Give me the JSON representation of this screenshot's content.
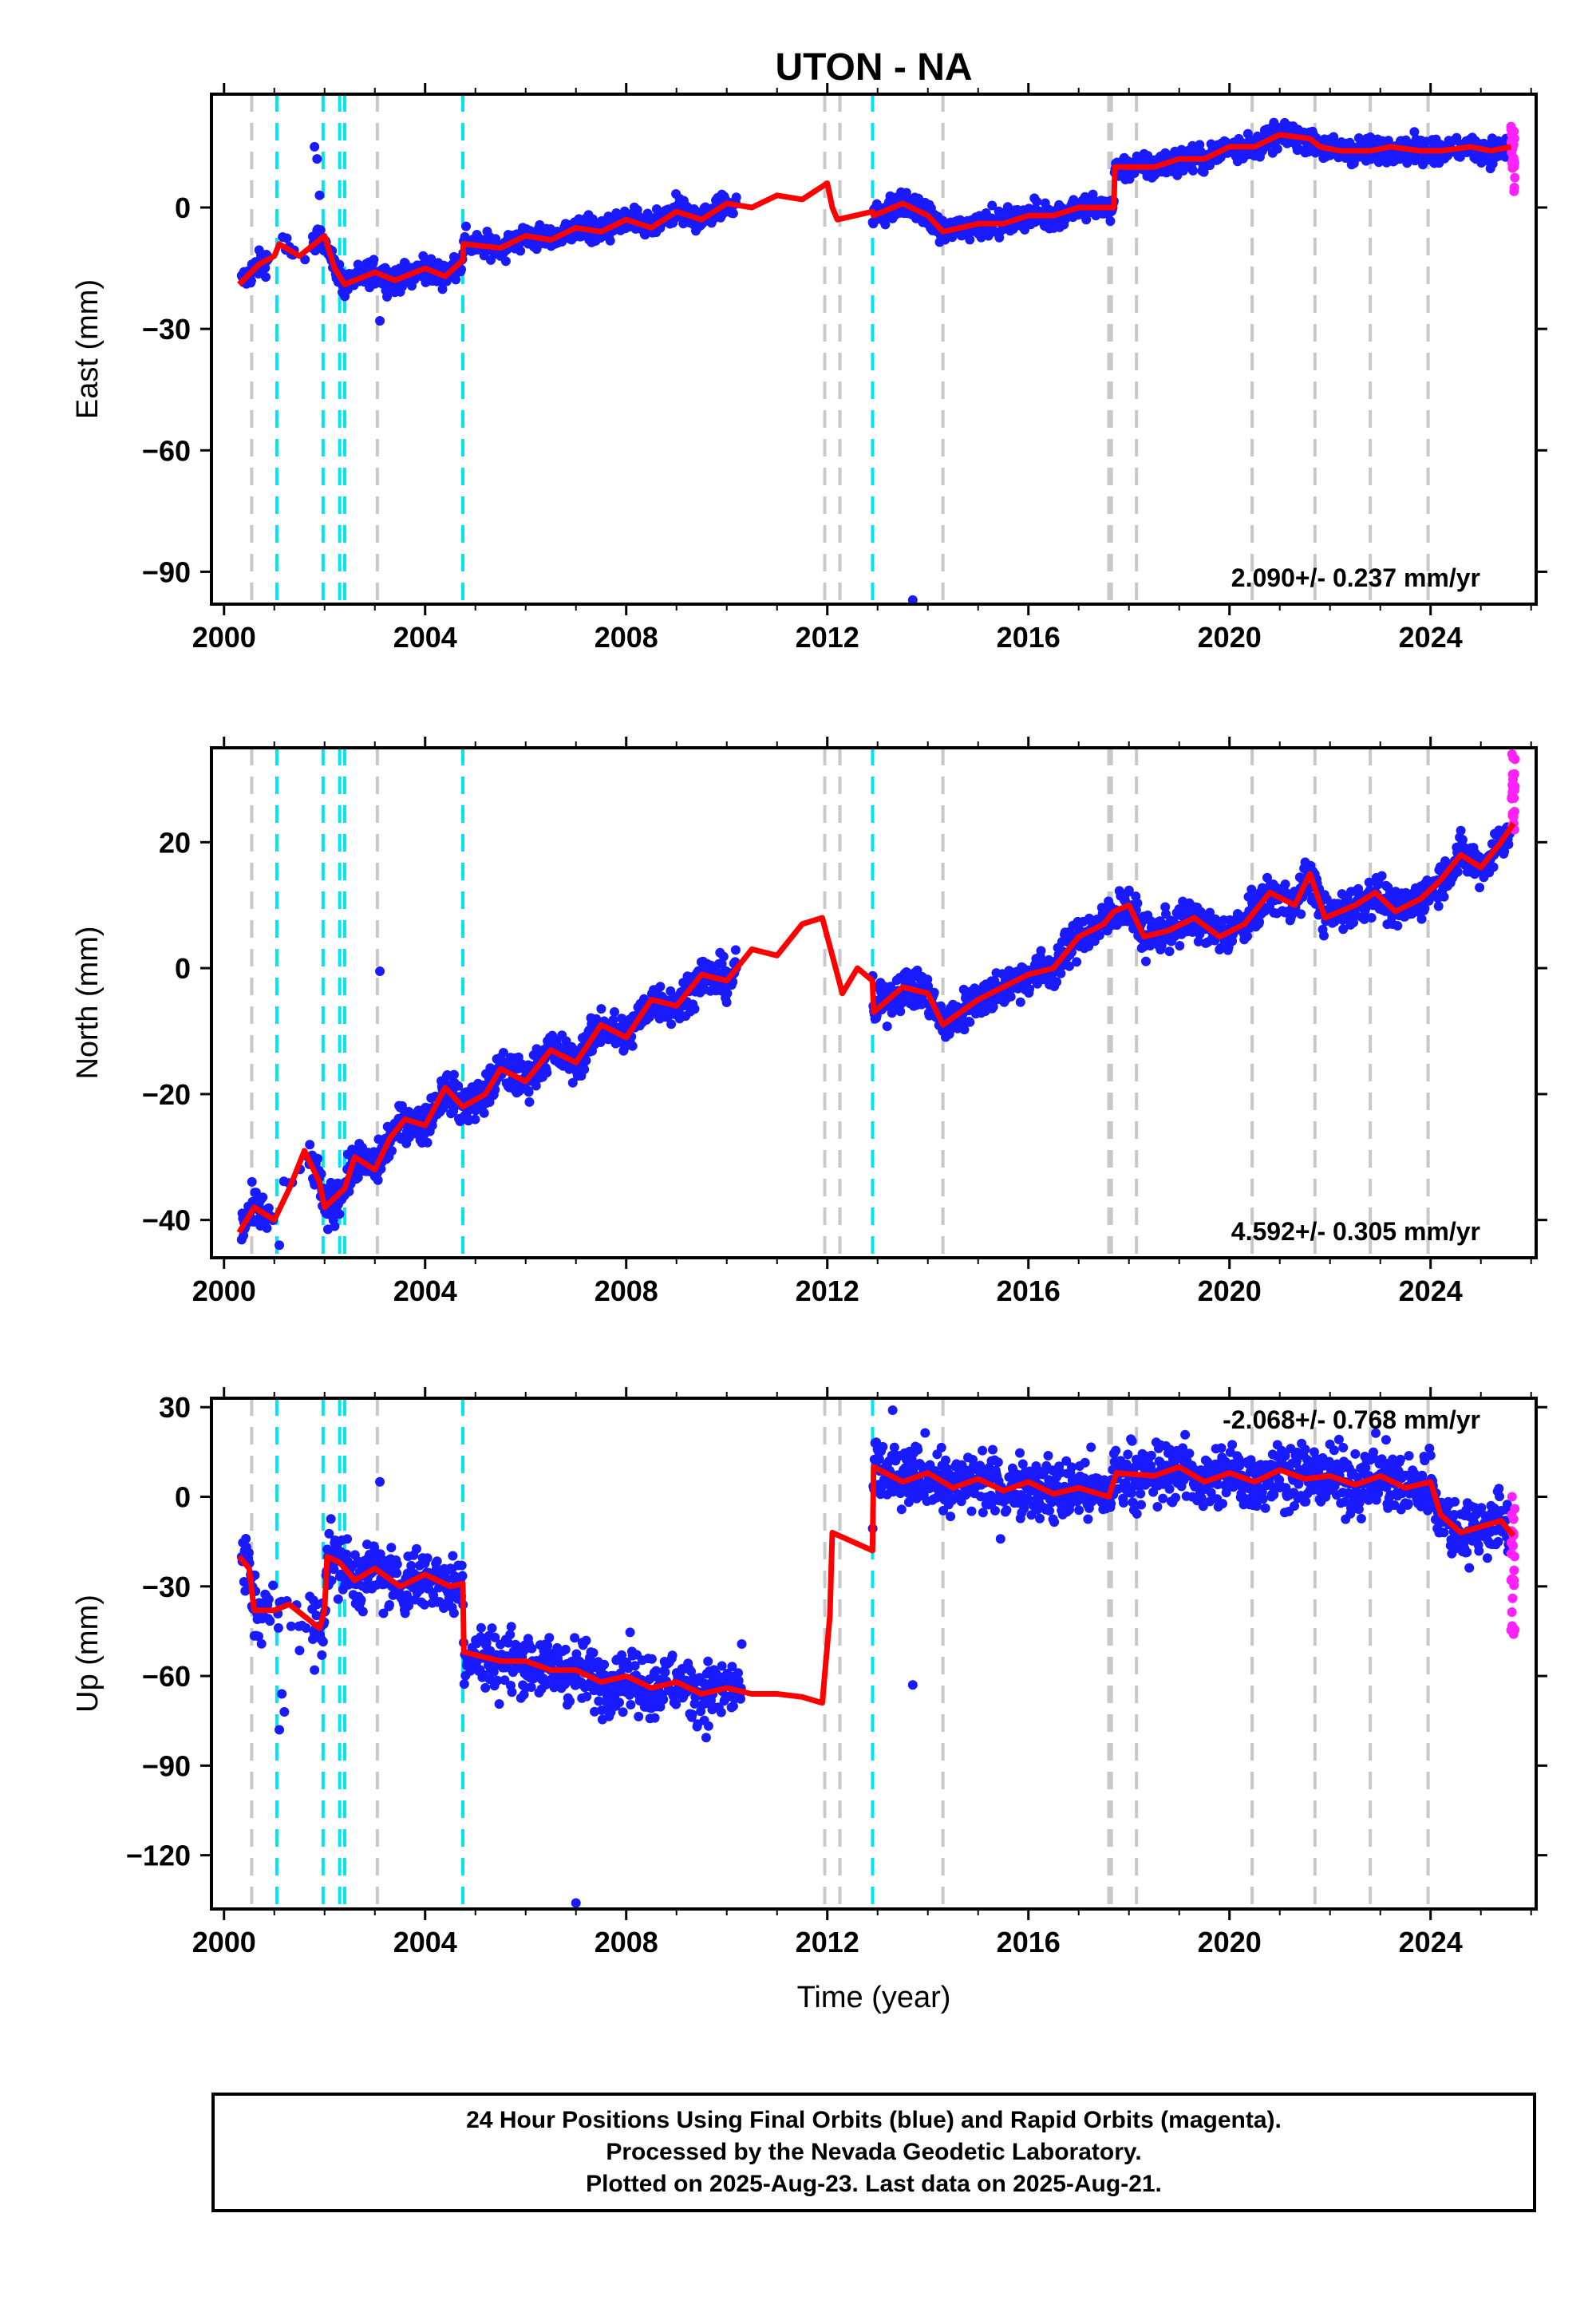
{
  "title": "UTON - NA",
  "xlabel": "Time (year)",
  "footer": {
    "line1": "24 Hour Positions Using Final Orbits (blue) and Rapid Orbits (magenta).",
    "line2": "Processed by the Nevada Geodetic Laboratory.",
    "line3": "Plotted on 2025-Aug-23. Last data on 2025-Aug-21."
  },
  "colors": {
    "final_orbits": "#1a1aff",
    "rapid_orbits": "#ff22ff",
    "model": "#ff0000",
    "equipment_change": "#c8c8c8",
    "earthquake": "#00e5ee"
  },
  "chart_data": [
    {
      "type": "scatter",
      "panel": "east",
      "ylabel": "East (mm)",
      "xlim": [
        1999.75,
        2026.1
      ],
      "ylim": [
        -98,
        28
      ],
      "xticks": [
        2000,
        2004,
        2008,
        2012,
        2016,
        2020,
        2024
      ],
      "yticks": [
        0,
        -30,
        -60,
        -90
      ],
      "rate_label": "2.090+/- 0.237 mm/yr",
      "model_line": [
        [
          2000.3,
          -19
        ],
        [
          2000.7,
          -14
        ],
        [
          2001.0,
          -12
        ],
        [
          2001.1,
          -9
        ],
        [
          2001.5,
          -12
        ],
        [
          2001.9,
          -8
        ],
        [
          2002.0,
          -7
        ],
        [
          2002.2,
          -15
        ],
        [
          2002.4,
          -19
        ],
        [
          2003.0,
          -16
        ],
        [
          2003.4,
          -18
        ],
        [
          2004.0,
          -15
        ],
        [
          2004.4,
          -17
        ],
        [
          2004.75,
          -13
        ],
        [
          2004.76,
          -9
        ],
        [
          2005.5,
          -10
        ],
        [
          2006.0,
          -7
        ],
        [
          2006.5,
          -8
        ],
        [
          2007.0,
          -5
        ],
        [
          2007.5,
          -6
        ],
        [
          2008.0,
          -3
        ],
        [
          2008.5,
          -5
        ],
        [
          2009.0,
          -1
        ],
        [
          2009.5,
          -3
        ],
        [
          2010.0,
          1
        ],
        [
          2010.5,
          0
        ],
        [
          2011.0,
          3
        ],
        [
          2011.5,
          2
        ],
        [
          2012.0,
          6
        ],
        [
          2012.1,
          0
        ],
        [
          2012.2,
          -3
        ],
        [
          2012.9,
          -1
        ],
        [
          2012.92,
          -2
        ],
        [
          2013.5,
          1
        ],
        [
          2014.0,
          -2
        ],
        [
          2014.3,
          -6
        ],
        [
          2015.0,
          -4
        ],
        [
          2015.5,
          -4
        ],
        [
          2016.0,
          -2
        ],
        [
          2016.5,
          -2
        ],
        [
          2017.0,
          0
        ],
        [
          2017.5,
          0
        ],
        [
          2017.7,
          0
        ],
        [
          2017.72,
          10
        ],
        [
          2018.5,
          10
        ],
        [
          2019.0,
          12
        ],
        [
          2019.5,
          12
        ],
        [
          2020.0,
          15
        ],
        [
          2020.5,
          15
        ],
        [
          2021.0,
          18
        ],
        [
          2021.6,
          17
        ],
        [
          2021.8,
          15
        ],
        [
          2022.2,
          14
        ],
        [
          2022.8,
          14
        ],
        [
          2023.2,
          15
        ],
        [
          2023.8,
          14
        ],
        [
          2024.2,
          14
        ],
        [
          2024.8,
          15
        ],
        [
          2025.2,
          14
        ],
        [
          2025.6,
          15
        ]
      ],
      "gaps": [
        [
          2010.2,
          2012.9
        ]
      ],
      "outliers": [
        [
          2001.8,
          15
        ],
        [
          2001.85,
          12
        ],
        [
          2003.1,
          -28
        ],
        [
          2013.7,
          -97
        ],
        [
          2001.9,
          3
        ]
      ],
      "rapid_points": [
        [
          2025.6,
          20
        ],
        [
          2025.62,
          16
        ],
        [
          2025.64,
          12
        ],
        [
          2025.66,
          4
        ],
        [
          2025.65,
          10
        ],
        [
          2025.67,
          17
        ]
      ]
    },
    {
      "type": "scatter",
      "panel": "north",
      "ylabel": "North (mm)",
      "xlim": [
        1999.75,
        2026.1
      ],
      "ylim": [
        -46,
        35
      ],
      "xticks": [
        2000,
        2004,
        2008,
        2012,
        2016,
        2020,
        2024
      ],
      "yticks": [
        20,
        0,
        -20,
        -40
      ],
      "rate_label": "4.592+/- 0.305 mm/yr",
      "model_line": [
        [
          2000.3,
          -42
        ],
        [
          2000.6,
          -38
        ],
        [
          2001.0,
          -40
        ],
        [
          2001.3,
          -35
        ],
        [
          2001.6,
          -29
        ],
        [
          2001.9,
          -34
        ],
        [
          2002.0,
          -38
        ],
        [
          2002.4,
          -35
        ],
        [
          2002.6,
          -30
        ],
        [
          2003.0,
          -32
        ],
        [
          2003.3,
          -27
        ],
        [
          2003.6,
          -24
        ],
        [
          2004.0,
          -25
        ],
        [
          2004.4,
          -19
        ],
        [
          2004.75,
          -22
        ],
        [
          2005.2,
          -20
        ],
        [
          2005.5,
          -16
        ],
        [
          2006.0,
          -18
        ],
        [
          2006.5,
          -13
        ],
        [
          2007.0,
          -15
        ],
        [
          2007.5,
          -9
        ],
        [
          2008.0,
          -11
        ],
        [
          2008.5,
          -5
        ],
        [
          2009.0,
          -6
        ],
        [
          2009.5,
          -1
        ],
        [
          2010.0,
          -2
        ],
        [
          2010.5,
          3
        ],
        [
          2011.0,
          2
        ],
        [
          2011.5,
          7
        ],
        [
          2011.9,
          8
        ],
        [
          2012.1,
          2
        ],
        [
          2012.3,
          -4
        ],
        [
          2012.6,
          0
        ],
        [
          2012.9,
          -2
        ],
        [
          2012.92,
          -7
        ],
        [
          2013.5,
          -3
        ],
        [
          2014.0,
          -4
        ],
        [
          2014.3,
          -9
        ],
        [
          2015.0,
          -5
        ],
        [
          2015.5,
          -3
        ],
        [
          2016.0,
          -1
        ],
        [
          2016.5,
          0
        ],
        [
          2017.0,
          5
        ],
        [
          2017.5,
          7
        ],
        [
          2017.7,
          9
        ],
        [
          2018.0,
          10
        ],
        [
          2018.3,
          5
        ],
        [
          2018.8,
          6
        ],
        [
          2019.3,
          8
        ],
        [
          2019.8,
          5
        ],
        [
          2020.3,
          7
        ],
        [
          2020.8,
          12
        ],
        [
          2021.3,
          10
        ],
        [
          2021.6,
          15
        ],
        [
          2021.9,
          8
        ],
        [
          2022.5,
          10
        ],
        [
          2022.9,
          12
        ],
        [
          2023.3,
          9
        ],
        [
          2023.8,
          11
        ],
        [
          2024.2,
          14
        ],
        [
          2024.6,
          18
        ],
        [
          2025.0,
          16
        ],
        [
          2025.4,
          20
        ],
        [
          2025.65,
          23
        ]
      ],
      "gaps": [
        [
          2010.2,
          2012.9
        ]
      ],
      "outliers": [
        [
          2003.1,
          -0.5
        ],
        [
          2001.1,
          -44
        ],
        [
          2002.2,
          -41
        ]
      ],
      "rapid_points": [
        [
          2025.62,
          34
        ],
        [
          2025.64,
          30
        ],
        [
          2025.66,
          27
        ],
        [
          2025.65,
          24
        ],
        [
          2025.67,
          22
        ],
        [
          2025.63,
          28
        ]
      ]
    },
    {
      "type": "scatter",
      "panel": "up",
      "ylabel": "Up (mm)",
      "xlim": [
        1999.75,
        2026.1
      ],
      "ylim": [
        -138,
        33
      ],
      "xticks": [
        2000,
        2004,
        2008,
        2012,
        2016,
        2020,
        2024
      ],
      "yticks": [
        30,
        0,
        -30,
        -60,
        -90,
        -120
      ],
      "rate_label": "-2.068+/- 0.768 mm/yr",
      "model_line": [
        [
          2000.3,
          -20
        ],
        [
          2000.5,
          -24
        ],
        [
          2000.6,
          -38
        ],
        [
          2001.0,
          -38
        ],
        [
          2001.3,
          -36
        ],
        [
          2001.6,
          -40
        ],
        [
          2001.9,
          -44
        ],
        [
          2002.0,
          -38
        ],
        [
          2002.05,
          -20
        ],
        [
          2002.3,
          -22
        ],
        [
          2002.6,
          -28
        ],
        [
          2003.0,
          -24
        ],
        [
          2003.5,
          -30
        ],
        [
          2004.0,
          -26
        ],
        [
          2004.5,
          -30
        ],
        [
          2004.75,
          -29
        ],
        [
          2004.77,
          -52
        ],
        [
          2005.5,
          -55
        ],
        [
          2006.0,
          -55
        ],
        [
          2006.5,
          -58
        ],
        [
          2007.0,
          -58
        ],
        [
          2007.5,
          -62
        ],
        [
          2008.0,
          -60
        ],
        [
          2008.5,
          -64
        ],
        [
          2009.0,
          -62
        ],
        [
          2009.5,
          -66
        ],
        [
          2010.0,
          -64
        ],
        [
          2010.5,
          -66
        ],
        [
          2011.0,
          -66
        ],
        [
          2011.5,
          -67
        ],
        [
          2011.9,
          -69
        ],
        [
          2012.05,
          -40
        ],
        [
          2012.1,
          -12
        ],
        [
          2012.9,
          -18
        ],
        [
          2012.92,
          10
        ],
        [
          2013.5,
          5
        ],
        [
          2014.0,
          8
        ],
        [
          2014.5,
          3
        ],
        [
          2015.0,
          6
        ],
        [
          2015.5,
          2
        ],
        [
          2016.0,
          5
        ],
        [
          2016.5,
          1
        ],
        [
          2017.0,
          3
        ],
        [
          2017.6,
          0
        ],
        [
          2017.75,
          8
        ],
        [
          2018.5,
          7
        ],
        [
          2019.0,
          10
        ],
        [
          2019.5,
          5
        ],
        [
          2020.0,
          8
        ],
        [
          2020.5,
          5
        ],
        [
          2021.0,
          9
        ],
        [
          2021.5,
          6
        ],
        [
          2022.0,
          7
        ],
        [
          2022.5,
          4
        ],
        [
          2023.0,
          7
        ],
        [
          2023.5,
          3
        ],
        [
          2024.0,
          5
        ],
        [
          2024.2,
          -6
        ],
        [
          2024.6,
          -12
        ],
        [
          2025.0,
          -10
        ],
        [
          2025.4,
          -8
        ],
        [
          2025.65,
          -13
        ]
      ],
      "gaps": [
        [
          2010.3,
          2012.9
        ]
      ],
      "outliers": [
        [
          2003.1,
          5
        ],
        [
          2007.0,
          -136
        ],
        [
          2013.7,
          -63
        ],
        [
          2013.3,
          29
        ],
        [
          2001.1,
          -78
        ],
        [
          2001.15,
          -66
        ],
        [
          2001.2,
          -72
        ],
        [
          2001.8,
          -58
        ]
      ],
      "rapid_points": [
        [
          2025.62,
          0
        ],
        [
          2025.64,
          -12
        ],
        [
          2025.66,
          -28
        ],
        [
          2025.65,
          -46
        ],
        [
          2025.67,
          -20
        ],
        [
          2025.63,
          -34
        ]
      ]
    }
  ],
  "vertical_lines": {
    "equipment": [
      2000.55,
      2003.05,
      2011.95,
      2012.25,
      2014.3,
      2017.6,
      2017.65,
      2018.15,
      2020.45,
      2021.7,
      2022.8,
      2023.95
    ],
    "earthquake": [
      2001.05,
      2001.97,
      2002.3,
      2002.4,
      2004.75,
      2012.9
    ]
  }
}
